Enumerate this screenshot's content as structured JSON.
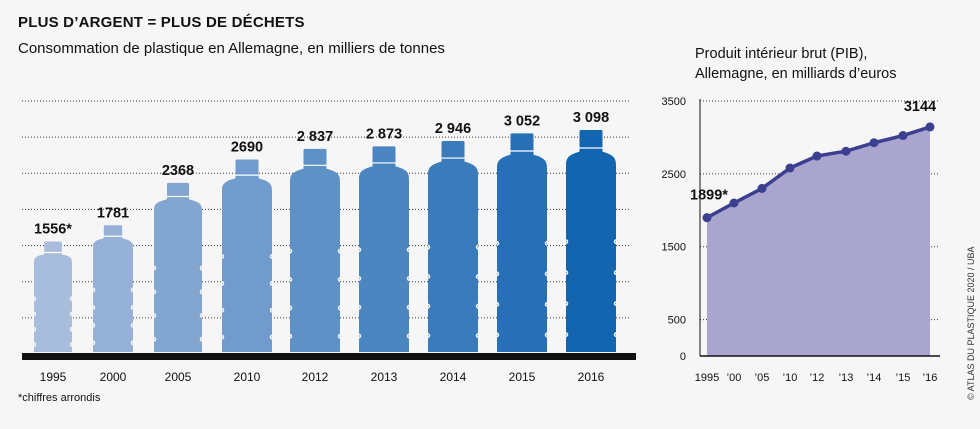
{
  "header": {
    "title": "PLUS D’ARGENT = PLUS DE DÉCHETS",
    "subtitle": "Consommation de plastique en Allemagne, en milliers de tonnes"
  },
  "footnote": "*chiffres arrondis",
  "credit": "© ATLAS DU PLASTIQUE 2020 / UBA",
  "colors": {
    "bottle_light": "#a8bcdc",
    "bottle_dark": "#1465b0",
    "gdp_fill": "#a9a5cf",
    "gdp_line": "#3b3f8f",
    "baseline": "#111111",
    "grid": "#333333"
  },
  "chart_data": [
    {
      "type": "bar",
      "categories": [
        "1995",
        "2000",
        "2005",
        "2010",
        "2012",
        "2013",
        "2014",
        "2015",
        "2016"
      ],
      "values": [
        1556,
        1781,
        2368,
        2690,
        2837,
        2873,
        2946,
        3052,
        3098
      ],
      "data_labels": [
        "1556*",
        "1781",
        "2368",
        "2690",
        "2 837",
        "2 873",
        "2 946",
        "3 052",
        "3 098"
      ],
      "title": "Consommation de plastique en Allemagne, en milliers de tonnes",
      "ylim": [
        0,
        3500
      ],
      "grid": true,
      "mark": "bottle"
    },
    {
      "type": "area",
      "x": [
        1995,
        2000,
        2005,
        2010,
        2012,
        2013,
        2014,
        2015,
        2016
      ],
      "x_tick_labels": [
        "1995",
        "’00",
        "’05",
        "’10",
        "’12",
        "’13",
        "’14",
        "’15",
        "’16"
      ],
      "values": [
        1899,
        2100,
        2300,
        2580,
        2745,
        2811,
        2927,
        3026,
        3144
      ],
      "annotations": [
        {
          "x": 1995,
          "label": "1899*"
        },
        {
          "x": 2016,
          "label": "3144"
        }
      ],
      "title": "Produit intérieur brut (PIB),",
      "subtitle": "Allemagne, en milliards d’euros",
      "y_ticks": [
        0,
        500,
        1500,
        2500,
        3500
      ],
      "y_tick_labels": [
        "0",
        "500",
        "1500",
        "2500",
        "3500"
      ],
      "ylim": [
        0,
        3500
      ],
      "grid": true
    }
  ]
}
